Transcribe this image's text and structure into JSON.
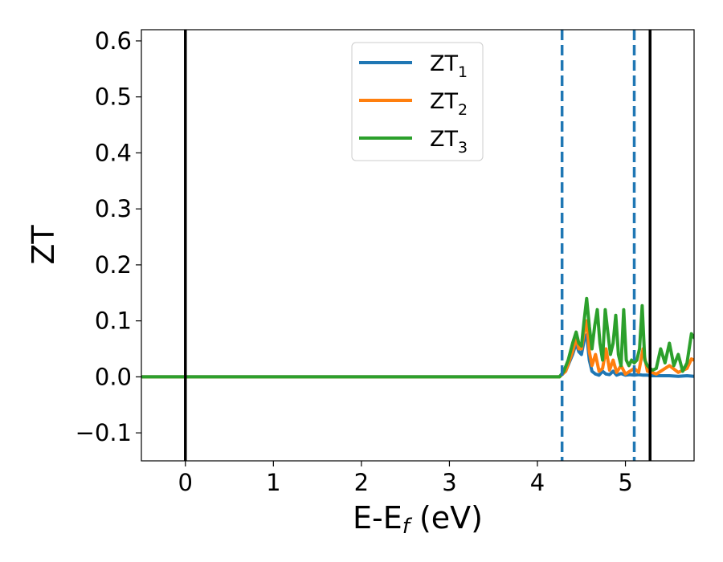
{
  "chart_data": {
    "type": "line",
    "xlabel": "E-E",
    "xlabel_sub": "f",
    "xlabel_unit": " (eV)",
    "ylabel": "ZT",
    "xlim": [
      -0.5,
      5.78
    ],
    "ylim": [
      -0.15,
      0.62
    ],
    "xticks": [
      0,
      1,
      2,
      3,
      4,
      5
    ],
    "xtick_labels": [
      "0",
      "1",
      "2",
      "3",
      "4",
      "5"
    ],
    "yticks": [
      -0.1,
      0.0,
      0.1,
      0.2,
      0.3,
      0.4,
      0.5,
      0.6
    ],
    "ytick_labels": [
      "−0.1",
      "0.0",
      "0.1",
      "0.2",
      "0.3",
      "0.4",
      "0.5",
      "0.6"
    ],
    "grid": false,
    "legend_position": "top-center",
    "vertical_lines": [
      {
        "x": 0.0,
        "style": "solid",
        "color": "#000000"
      },
      {
        "x": 4.28,
        "style": "dashed",
        "color": "#1f77b4"
      },
      {
        "x": 5.1,
        "style": "dashed",
        "color": "#1f77b4"
      },
      {
        "x": 5.28,
        "style": "solid",
        "color": "#000000"
      }
    ],
    "series": [
      {
        "name": "ZT",
        "name_sub": "1",
        "color": "#1f77b4",
        "x": [
          -0.5,
          4.25,
          4.32,
          4.4,
          4.44,
          4.47,
          4.5,
          4.53,
          4.56,
          4.59,
          4.62,
          4.66,
          4.7,
          4.74,
          4.78,
          4.82,
          4.86,
          4.9,
          4.95,
          5.0,
          5.05,
          5.1,
          5.15,
          5.2,
          5.25,
          5.3,
          5.4,
          5.5,
          5.6,
          5.7,
          5.78
        ],
        "y": [
          0.0,
          0.0,
          0.01,
          0.04,
          0.06,
          0.045,
          0.04,
          0.065,
          0.075,
          0.03,
          0.01,
          0.005,
          0.003,
          0.01,
          0.005,
          0.004,
          0.01,
          0.003,
          0.006,
          0.003,
          0.004,
          0.003,
          0.004,
          0.003,
          0.003,
          0.002,
          0.002,
          0.002,
          0.001,
          0.002,
          0.001
        ]
      },
      {
        "name": "ZT",
        "name_sub": "2",
        "color": "#ff7f0e",
        "x": [
          -0.5,
          4.25,
          4.32,
          4.4,
          4.44,
          4.47,
          4.5,
          4.53,
          4.56,
          4.59,
          4.62,
          4.66,
          4.7,
          4.74,
          4.78,
          4.82,
          4.86,
          4.9,
          4.95,
          5.0,
          5.05,
          5.1,
          5.15,
          5.2,
          5.25,
          5.3,
          5.35,
          5.4,
          5.5,
          5.6,
          5.7,
          5.75,
          5.78
        ],
        "y": [
          0.0,
          0.0,
          0.01,
          0.045,
          0.07,
          0.05,
          0.05,
          0.08,
          0.1,
          0.045,
          0.02,
          0.04,
          0.01,
          0.015,
          0.05,
          0.012,
          0.03,
          0.008,
          0.02,
          0.005,
          0.01,
          0.015,
          0.008,
          0.05,
          0.01,
          0.008,
          0.005,
          0.01,
          0.02,
          0.008,
          0.015,
          0.032,
          0.03
        ]
      },
      {
        "name": "ZT",
        "name_sub": "3",
        "color": "#2ca02c",
        "x": [
          -0.5,
          4.25,
          4.3,
          4.35,
          4.4,
          4.44,
          4.47,
          4.5,
          4.53,
          4.56,
          4.59,
          4.62,
          4.65,
          4.68,
          4.71,
          4.74,
          4.77,
          4.8,
          4.83,
          4.86,
          4.89,
          4.92,
          4.95,
          4.98,
          5.01,
          5.04,
          5.07,
          5.1,
          5.13,
          5.16,
          5.19,
          5.22,
          5.25,
          5.28,
          5.31,
          5.35,
          5.4,
          5.45,
          5.5,
          5.55,
          5.6,
          5.65,
          5.7,
          5.75,
          5.78
        ],
        "y": [
          0.0,
          0.0,
          0.01,
          0.03,
          0.06,
          0.08,
          0.06,
          0.055,
          0.1,
          0.14,
          0.09,
          0.05,
          0.09,
          0.12,
          0.06,
          0.03,
          0.12,
          0.08,
          0.04,
          0.06,
          0.11,
          0.04,
          0.02,
          0.12,
          0.03,
          0.02,
          0.03,
          0.025,
          0.03,
          0.05,
          0.127,
          0.03,
          0.02,
          0.015,
          0.012,
          0.015,
          0.05,
          0.025,
          0.06,
          0.02,
          0.04,
          0.01,
          0.025,
          0.077,
          0.07
        ]
      }
    ]
  }
}
